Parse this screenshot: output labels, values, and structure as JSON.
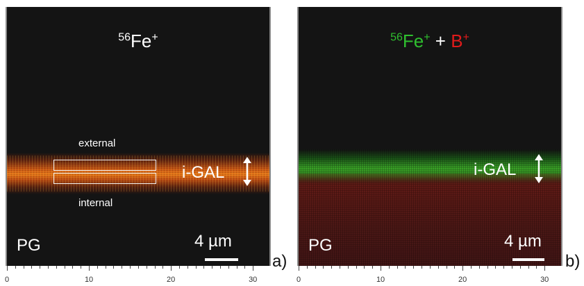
{
  "panel_a": {
    "title_iso": "56",
    "title_elem": "Fe",
    "title_charge": "+",
    "label_external": "external",
    "label_internal": "internal",
    "label_igal": "i-GAL",
    "label_pg": "PG",
    "scale_text": "4 µm",
    "letter": "a)",
    "band_color": "#e07a1a"
  },
  "panel_b": {
    "title_iso": "56",
    "title_elem": "Fe",
    "title_charge": "+",
    "title_plus": " + ",
    "title_b": "B",
    "title_b_charge": "+",
    "label_igal": "i-GAL",
    "label_pg": "PG",
    "scale_text": "4 µm",
    "letter": "b)",
    "fe_color": "#2fbf2f",
    "b_color": "#e11b1b"
  },
  "axis_ticks": [
    "0",
    "10",
    "20",
    "30"
  ]
}
